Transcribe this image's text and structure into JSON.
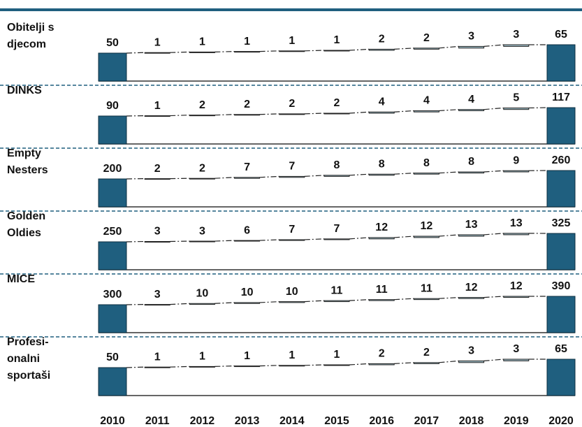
{
  "chart_data": {
    "type": "waterfall",
    "categories": [
      "2010",
      "2011",
      "2012",
      "2013",
      "2014",
      "2015",
      "2016",
      "2017",
      "2018",
      "2019",
      "2020"
    ],
    "color": "#1f5f7f",
    "series": [
      {
        "name": "Obitelji s djecom",
        "values": [
          50,
          1,
          1,
          1,
          1,
          1,
          2,
          2,
          3,
          3,
          65
        ]
      },
      {
        "name": "DINKS",
        "values": [
          90,
          1,
          2,
          2,
          2,
          2,
          4,
          4,
          4,
          5,
          117
        ]
      },
      {
        "name": "Empty Nesters",
        "values": [
          200,
          2,
          2,
          7,
          7,
          8,
          8,
          8,
          8,
          9,
          260
        ]
      },
      {
        "name": "Golden Oldies",
        "values": [
          250,
          3,
          3,
          6,
          7,
          7,
          12,
          12,
          13,
          13,
          325
        ]
      },
      {
        "name": "MICE",
        "values": [
          300,
          3,
          10,
          10,
          10,
          11,
          11,
          11,
          12,
          12,
          390
        ]
      },
      {
        "name": "Profesi-onalni sportaši",
        "values": [
          50,
          1,
          1,
          1,
          1,
          1,
          2,
          2,
          3,
          3,
          65
        ]
      }
    ]
  }
}
